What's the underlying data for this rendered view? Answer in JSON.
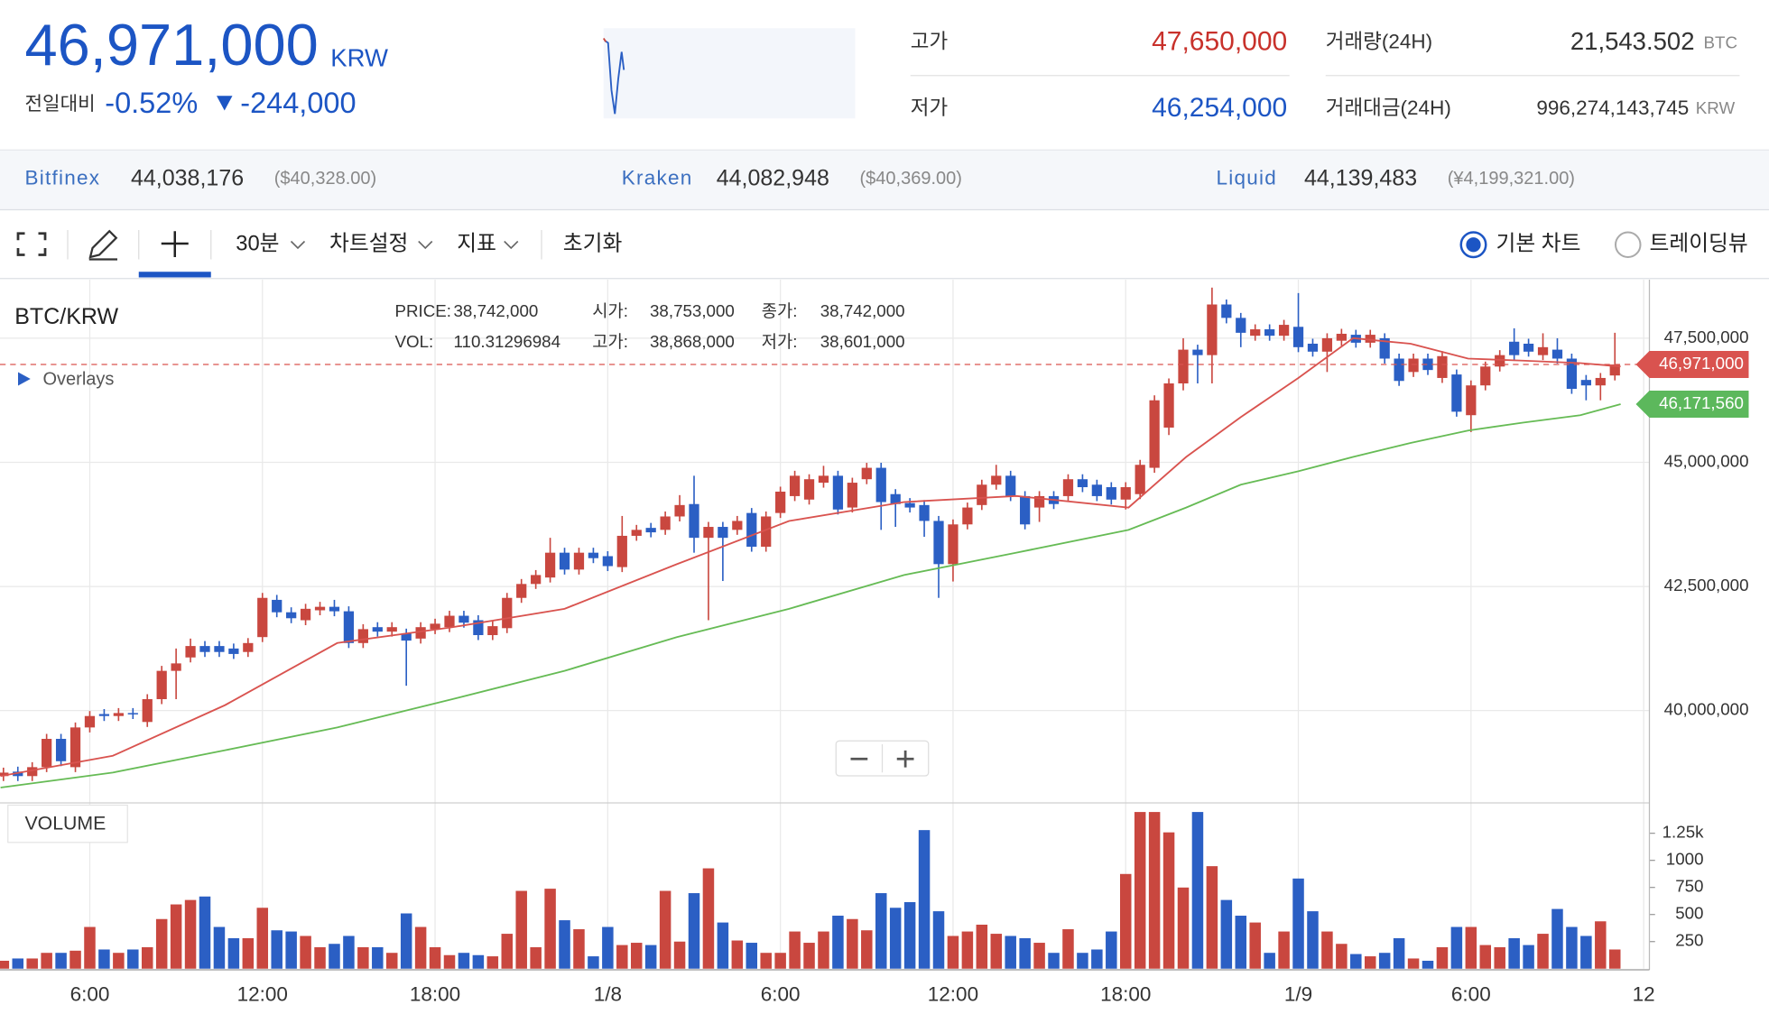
{
  "header": {
    "price": "46,971,000",
    "currency": "KRW",
    "change_label": "전일대비",
    "change_pct": "-0.52%",
    "change_amount": "-244,000",
    "stats": [
      {
        "label": "고가",
        "value": "47,650,000"
      },
      {
        "label": "저가",
        "value": "46,254,000"
      },
      {
        "label": "거래량(24H)",
        "value": "21,543.502",
        "unit": "BTC"
      },
      {
        "label": "거래대금(24H)",
        "value": "996,274,143,745",
        "unit": "KRW"
      }
    ]
  },
  "exchanges": [
    {
      "name": "Bitfinex",
      "price": "44,038,176",
      "foreign": "($40,328.00)"
    },
    {
      "name": "Kraken",
      "price": "44,082,948",
      "foreign": "($40,369.00)"
    },
    {
      "name": "Liquid",
      "price": "44,139,483",
      "foreign": "(¥4,199,321.00)"
    }
  ],
  "toolbar": {
    "interval": "30분",
    "chart_settings": "차트설정",
    "indicators": "지표",
    "reset": "초기화",
    "basic_chart": "기본 차트",
    "tradingview": "트레이딩뷰"
  },
  "chart_data": {
    "type": "candlestick",
    "title": "BTC/KRW",
    "overlays_label": "Overlays",
    "volume_title": "VOLUME",
    "info": [
      {
        "label": "PRICE:",
        "value": "38,742,000"
      },
      {
        "label": "시가:",
        "value": "38,753,000"
      },
      {
        "label": "종가:",
        "value": "38,742,000"
      },
      {
        "label": "VOL:",
        "value": "110.31296984"
      },
      {
        "label": "고가:",
        "value": "38,868,000"
      },
      {
        "label": "저가:",
        "value": "38,601,000"
      }
    ],
    "up_color": "#c9473f",
    "down_color": "#2b5fc4",
    "grid": true,
    "x": [
      3,
      3.5,
      4,
      4.5,
      5,
      5.5,
      6,
      6.5,
      7,
      7.5,
      8,
      8.5,
      9,
      9.5,
      10,
      10.5,
      11,
      11.5,
      12,
      12.5,
      13,
      13.5,
      14,
      14.5,
      15,
      15.5,
      16,
      16.5,
      17,
      17.5,
      18,
      18.5,
      19,
      19.5,
      20,
      20.5,
      21,
      21.5,
      22,
      22.5,
      23,
      23.5,
      24,
      24.5,
      25,
      25.5,
      26,
      26.5,
      27,
      27.5,
      28,
      28.5,
      29,
      29.5,
      30,
      30.5,
      31,
      31.5,
      32,
      32.5,
      33,
      33.5,
      34,
      34.5,
      35,
      35.5,
      36,
      36.5,
      37,
      37.5,
      38,
      38.5,
      39,
      39.5,
      40,
      40.5,
      41,
      41.5,
      42,
      42.5,
      43,
      43.5,
      44,
      44.5,
      45,
      45.5,
      46,
      46.5,
      47,
      47.5,
      48,
      48.5,
      49,
      49.5,
      50,
      50.5,
      51,
      51.5,
      52,
      52.5,
      53,
      53.5,
      54,
      54.5,
      55,
      55.5,
      56,
      56.5,
      57,
      57.5,
      58,
      58.5,
      59
    ],
    "open": [
      38680000,
      38770000,
      38680000,
      38860000,
      39430000,
      38860000,
      39660000,
      39930000,
      39890000,
      39950000,
      39770000,
      40230000,
      40800000,
      41070000,
      41300000,
      41300000,
      41250000,
      41180000,
      41480000,
      42230000,
      41980000,
      41820000,
      42020000,
      42090000,
      42000000,
      41360000,
      41680000,
      41590000,
      41550000,
      41450000,
      41640000,
      41680000,
      41910000,
      41820000,
      41520000,
      41660000,
      42270000,
      42550000,
      42680000,
      43180000,
      42840000,
      43180000,
      43110000,
      42890000,
      43520000,
      43680000,
      43640000,
      43910000,
      44160000,
      43480000,
      43700000,
      43640000,
      43980000,
      43300000,
      43980000,
      44320000,
      44250000,
      44590000,
      44730000,
      44090000,
      44660000,
      44890000,
      44360000,
      44180000,
      44140000,
      43820000,
      42950000,
      43750000,
      44140000,
      44550000,
      44730000,
      44320000,
      44090000,
      44320000,
      44320000,
      44660000,
      44550000,
      44500000,
      44250000,
      44360000,
      44890000,
      45700000,
      46590000,
      47270000,
      47160000,
      48180000,
      47910000,
      47550000,
      47680000,
      47550000,
      47730000,
      47390000,
      47230000,
      47450000,
      47570000,
      47410000,
      47500000,
      47090000,
      46820000,
      47090000,
      46700000,
      46770000,
      45950000,
      46550000,
      46930000,
      47430000,
      47390000,
      47160000,
      47270000,
      47090000,
      46660000,
      46550000,
      46750000
    ],
    "high": [
      38850000,
      38870000,
      38960000,
      39530000,
      39530000,
      39760000,
      39990000,
      40030000,
      40050000,
      40050000,
      40330000,
      40900000,
      41250000,
      41450000,
      41400000,
      41400000,
      41350000,
      41460000,
      42370000,
      42330000,
      42080000,
      42150000,
      42190000,
      42230000,
      42100000,
      41740000,
      41780000,
      41780000,
      41650000,
      41780000,
      41850000,
      42010000,
      42010000,
      41920000,
      41800000,
      42370000,
      42650000,
      42830000,
      43480000,
      43280000,
      43280000,
      43280000,
      43210000,
      43920000,
      43740000,
      43780000,
      44010000,
      44340000,
      44730000,
      43800000,
      43800000,
      43920000,
      44080000,
      44010000,
      44510000,
      44830000,
      44760000,
      44930000,
      44830000,
      44690000,
      44990000,
      44990000,
      44460000,
      44280000,
      44240000,
      43920000,
      43850000,
      44190000,
      44650000,
      44950000,
      44830000,
      44420000,
      44420000,
      44420000,
      44760000,
      44760000,
      44650000,
      44600000,
      44600000,
      45050000,
      46350000,
      46690000,
      47500000,
      47370000,
      48520000,
      48280000,
      48010000,
      47780000,
      47780000,
      47870000,
      48410000,
      47490000,
      47600000,
      47690000,
      47670000,
      47670000,
      47600000,
      47190000,
      47190000,
      47190000,
      47240000,
      46870000,
      46650000,
      47030000,
      47260000,
      47700000,
      47490000,
      47600000,
      47500000,
      47190000,
      46760000,
      46800000,
      47610000
    ],
    "low": [
      38580000,
      38580000,
      38580000,
      38760000,
      38880000,
      38760000,
      39560000,
      39790000,
      39790000,
      39830000,
      39670000,
      40130000,
      40230000,
      40970000,
      41080000,
      41080000,
      41040000,
      41080000,
      41380000,
      41880000,
      41760000,
      41720000,
      41920000,
      41900000,
      41260000,
      41260000,
      41490000,
      41490000,
      40500000,
      41350000,
      41540000,
      41580000,
      41670000,
      41420000,
      41420000,
      41560000,
      42170000,
      42450000,
      42580000,
      42740000,
      42740000,
      42970000,
      42810000,
      42790000,
      43420000,
      43490000,
      43540000,
      43810000,
      43180000,
      41820000,
      42610000,
      43540000,
      43200000,
      43200000,
      43880000,
      44220000,
      44150000,
      44490000,
      43950000,
      43990000,
      44560000,
      43640000,
      43700000,
      43990000,
      43500000,
      42270000,
      42600000,
      43650000,
      44040000,
      44450000,
      44220000,
      43650000,
      43800000,
      44060000,
      44220000,
      44400000,
      44220000,
      44150000,
      44050000,
      44260000,
      44790000,
      45550000,
      46450000,
      46590000,
      46590000,
      47800000,
      47320000,
      47450000,
      47450000,
      47450000,
      47220000,
      47130000,
      46820000,
      47350000,
      47310000,
      47310000,
      46990000,
      46540000,
      46720000,
      46760000,
      46600000,
      45920000,
      45610000,
      46450000,
      46830000,
      47060000,
      47130000,
      47060000,
      46990000,
      46380000,
      46250000,
      46250000,
      46650000
    ],
    "close": [
      38750000,
      38680000,
      38860000,
      39430000,
      38980000,
      39660000,
      39890000,
      39890000,
      39950000,
      39930000,
      40230000,
      40800000,
      40950000,
      41300000,
      41180000,
      41180000,
      41140000,
      41360000,
      42270000,
      41980000,
      41860000,
      42050000,
      42090000,
      42000000,
      41360000,
      41640000,
      41590000,
      41680000,
      41410000,
      41680000,
      41750000,
      41910000,
      41770000,
      41520000,
      41700000,
      42270000,
      42550000,
      42730000,
      43180000,
      42840000,
      43180000,
      43070000,
      42910000,
      43520000,
      43640000,
      43590000,
      43910000,
      44140000,
      43480000,
      43700000,
      43480000,
      43820000,
      43300000,
      43910000,
      44410000,
      44730000,
      44660000,
      44730000,
      44050000,
      44590000,
      44890000,
      44200000,
      44160000,
      44090000,
      43820000,
      42950000,
      43750000,
      44090000,
      44550000,
      44730000,
      44320000,
      43750000,
      44320000,
      44160000,
      44660000,
      44500000,
      44320000,
      44250000,
      44500000,
      44950000,
      46250000,
      46590000,
      47270000,
      47160000,
      48180000,
      47910000,
      47610000,
      47680000,
      47550000,
      47770000,
      47320000,
      47230000,
      47500000,
      47590000,
      47410000,
      47570000,
      47090000,
      46640000,
      47090000,
      46860000,
      47140000,
      46020000,
      46550000,
      46930000,
      47160000,
      47160000,
      47230000,
      47320000,
      47090000,
      46480000,
      46550000,
      46700000,
      46971000
    ],
    "volume": [
      73,
      94,
      94,
      146,
      146,
      166,
      385,
      177,
      146,
      177,
      198,
      458,
      593,
      634,
      666,
      385,
      281,
      281,
      562,
      354,
      343,
      302,
      198,
      229,
      302,
      198,
      198,
      146,
      510,
      385,
      198,
      125,
      146,
      125,
      114,
      322,
      718,
      198,
      738,
      447,
      364,
      114,
      385,
      218,
      239,
      218,
      718,
      250,
      697,
      926,
      426,
      260,
      239,
      146,
      146,
      343,
      239,
      343,
      489,
      458,
      354,
      697,
      562,
      614,
      1279,
      530,
      302,
      343,
      406,
      322,
      302,
      281,
      239,
      146,
      364,
      146,
      177,
      343,
      874,
      1446,
      1446,
      1258,
      749,
      1446,
      946,
      634,
      489,
      426,
      146,
      343,
      832,
      530,
      343,
      229,
      135,
      114,
      146,
      281,
      94,
      73,
      198,
      385,
      385,
      218,
      198,
      281,
      218,
      322,
      551,
      385,
      302,
      437,
      177
    ],
    "overlays": [
      {
        "color": "#d9534f",
        "x": [
          2.9,
          6.8,
          10.7,
          14.6,
          18.6,
          22.5,
          26.4,
          30.3,
          34.3,
          38.2,
          42.1,
          44.1,
          46.0,
          48.0,
          49.9,
          51.9,
          53.9,
          55.8,
          57.8,
          59.2
        ],
        "values": [
          38680000,
          39090000,
          40110000,
          41360000,
          41680000,
          42050000,
          42950000,
          43820000,
          44200000,
          44320000,
          44090000,
          45110000,
          45910000,
          46700000,
          47500000,
          47390000,
          47090000,
          47050000,
          47000000,
          46930000
        ]
      },
      {
        "color": "#66bb55",
        "x": [
          2.9,
          6.8,
          10.7,
          14.6,
          18.6,
          22.5,
          26.4,
          30.3,
          34.3,
          38.2,
          42.1,
          44.1,
          46.0,
          48.0,
          49.9,
          51.9,
          53.9,
          55.8,
          57.8,
          59.2
        ],
        "values": [
          38450000,
          38750000,
          39200000,
          39660000,
          40230000,
          40800000,
          41480000,
          42050000,
          42730000,
          43180000,
          43640000,
          44090000,
          44550000,
          44820000,
          45110000,
          45390000,
          45640000,
          45800000,
          45950000,
          46171560
        ]
      }
    ],
    "price_badges": [
      {
        "value": 46971000,
        "label": "46,971,000",
        "color": "#d9534f",
        "dashed": true
      },
      {
        "value": 46171560,
        "label": "46,171,560",
        "color": "#5cb85c",
        "dashed": false
      }
    ],
    "xlim": [
      2.88,
      60.2
    ],
    "xticks": [
      {
        "value": 6,
        "label": "6:00"
      },
      {
        "value": 12,
        "label": "12:00"
      },
      {
        "value": 18,
        "label": "18:00"
      },
      {
        "value": 24,
        "label": "1/8"
      },
      {
        "value": 30,
        "label": "6:00"
      },
      {
        "value": 36,
        "label": "12:00"
      },
      {
        "value": 42,
        "label": "18:00"
      },
      {
        "value": 48,
        "label": "1/9"
      },
      {
        "value": 54,
        "label": "6:00"
      },
      {
        "value": 60,
        "label": "12"
      }
    ],
    "ylim": [
      38140000,
      48680000
    ],
    "yticks": [
      {
        "value": 40000000,
        "label": "40,000,000"
      },
      {
        "value": 42500000,
        "label": "42,500,000"
      },
      {
        "value": 45000000,
        "label": "45,000,000"
      },
      {
        "value": 47500000,
        "label": "47,500,000"
      }
    ],
    "volume_ylim": [
      0,
      1530
    ],
    "volume_yticks": [
      250,
      500,
      750,
      1000,
      {
        "value": 1250,
        "label": "1.25k"
      }
    ]
  }
}
